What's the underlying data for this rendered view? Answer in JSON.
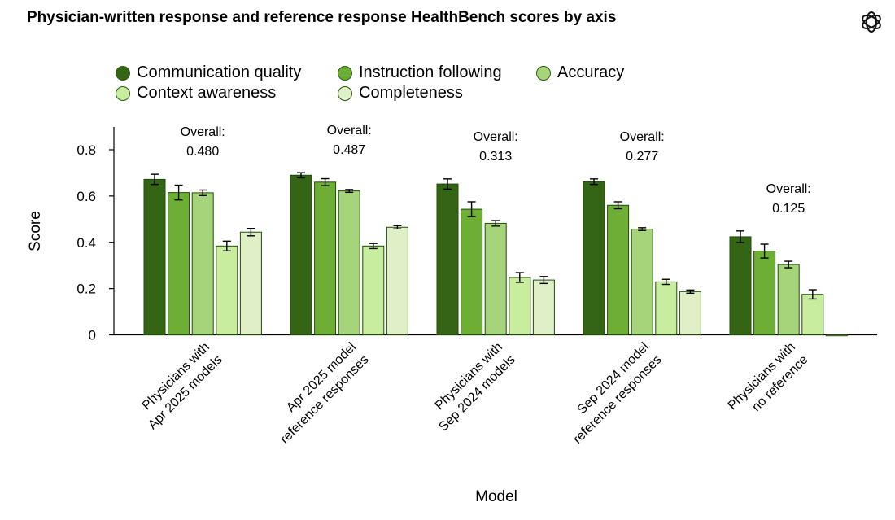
{
  "title": "Physician-written response and reference response HealthBench scores by axis",
  "logo": "openai-logo-icon",
  "chart_data": {
    "type": "bar",
    "title": "Physician-written response and reference response HealthBench scores by axis",
    "xlabel": "Model",
    "ylabel": "Score",
    "ylim": [
      0,
      0.9
    ],
    "yticks": [
      "0",
      "0.2",
      "0.4",
      "0.6",
      "0.8"
    ],
    "ytick_values": [
      0,
      0.2,
      0.4,
      0.6,
      0.8
    ],
    "grid": false,
    "legend_position": "top",
    "categories": [
      [
        "Physicians with",
        "Apr 2025 models"
      ],
      [
        "Apr 2025 model",
        "reference responses"
      ],
      [
        "Physicians with",
        "Sep 2024 models"
      ],
      [
        "Sep 2024 model",
        "reference responses"
      ],
      [
        "Physicians with",
        "no reference"
      ]
    ],
    "overall_label": "Overall:",
    "overall": [
      "0.480",
      "0.487",
      "0.313",
      "0.277",
      "0.125"
    ],
    "series": [
      {
        "name": "Communication quality",
        "color": "#346514",
        "values": [
          0.672,
          0.69,
          0.652,
          0.662,
          0.424
        ],
        "errors": [
          0.022,
          0.011,
          0.022,
          0.012,
          0.025
        ]
      },
      {
        "name": "Instruction following",
        "color": "#6daf34",
        "values": [
          0.615,
          0.66,
          0.543,
          0.56,
          0.362
        ],
        "errors": [
          0.032,
          0.015,
          0.032,
          0.015,
          0.03
        ]
      },
      {
        "name": "Accuracy",
        "color": "#a5d47a",
        "values": [
          0.614,
          0.622,
          0.482,
          0.457,
          0.304
        ],
        "errors": [
          0.012,
          0.006,
          0.012,
          0.006,
          0.014
        ]
      },
      {
        "name": "Context awareness",
        "color": "#c8ed9e",
        "values": [
          0.384,
          0.384,
          0.248,
          0.229,
          0.175
        ],
        "errors": [
          0.021,
          0.011,
          0.021,
          0.011,
          0.02
        ]
      },
      {
        "name": "Completeness",
        "color": "#dff0c7",
        "values": [
          0.444,
          0.465,
          0.237,
          0.187,
          0.0
        ],
        "errors": [
          0.016,
          0.007,
          0.015,
          0.007,
          0.0
        ]
      }
    ]
  }
}
